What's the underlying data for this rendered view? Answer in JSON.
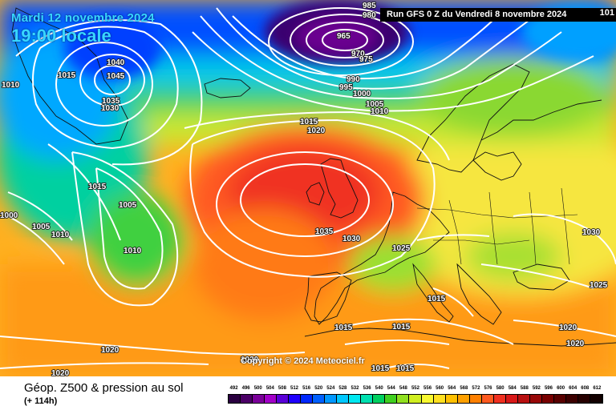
{
  "header": {
    "date": "Mardi 12 novembre 2024",
    "time": "19:00 locale",
    "run": "Run GFS 0 Z du Vendredi 8 novembre 2024",
    "corner_value": "101"
  },
  "copyright": "Copyright © 2024 Meteociel.fr",
  "footer": {
    "title": "Géop. Z500 & pression au sol",
    "subtitle": "(+ 114h)"
  },
  "scale": {
    "ticks": [
      "492",
      "496",
      "500",
      "504",
      "508",
      "512",
      "516",
      "520",
      "524",
      "528",
      "532",
      "536",
      "540",
      "544",
      "548",
      "552",
      "556",
      "560",
      "564",
      "568",
      "572",
      "576",
      "580",
      "584",
      "588",
      "592",
      "596",
      "600",
      "604",
      "608",
      "612"
    ],
    "colors": [
      "#2a0040",
      "#4b0066",
      "#7a0099",
      "#a200c8",
      "#5a00d8",
      "#1f00ff",
      "#0028ff",
      "#0060ff",
      "#0098ff",
      "#00c8ff",
      "#00e8f0",
      "#00e0b0",
      "#00d060",
      "#40d020",
      "#90e020",
      "#d0ee20",
      "#f8f830",
      "#ffe020",
      "#ffc000",
      "#ffa000",
      "#ff8000",
      "#ff5a20",
      "#f03020",
      "#d81818",
      "#b81010",
      "#980808",
      "#780000",
      "#580000",
      "#3c0000",
      "#260000",
      "#120000"
    ]
  },
  "isobar_labels": [
    {
      "text": "985"
    },
    {
      "text": "980"
    },
    {
      "text": "965"
    },
    {
      "text": "970"
    },
    {
      "text": "975"
    },
    {
      "text": "990"
    },
    {
      "text": "995"
    },
    {
      "text": "1000"
    },
    {
      "text": "1005"
    },
    {
      "text": "1010"
    },
    {
      "text": "1040"
    },
    {
      "text": "1045"
    },
    {
      "text": "1015"
    },
    {
      "text": "1035"
    },
    {
      "text": "1030"
    },
    {
      "text": "1010"
    },
    {
      "text": "1015"
    },
    {
      "text": "1020"
    },
    {
      "text": "1015"
    },
    {
      "text": "1005"
    },
    {
      "text": "1000"
    },
    {
      "text": "1005"
    },
    {
      "text": "1010"
    },
    {
      "text": "1010"
    },
    {
      "text": "1035"
    },
    {
      "text": "1030"
    },
    {
      "text": "1025"
    },
    {
      "text": "1015"
    },
    {
      "text": "1015"
    },
    {
      "text": "1015"
    },
    {
      "text": "1015"
    },
    {
      "text": "1015"
    },
    {
      "text": "1020"
    },
    {
      "text": "1020"
    },
    {
      "text": "1020"
    },
    {
      "text": "1030"
    },
    {
      "text": "1025"
    },
    {
      "text": "1020"
    },
    {
      "text": "1020"
    }
  ]
}
